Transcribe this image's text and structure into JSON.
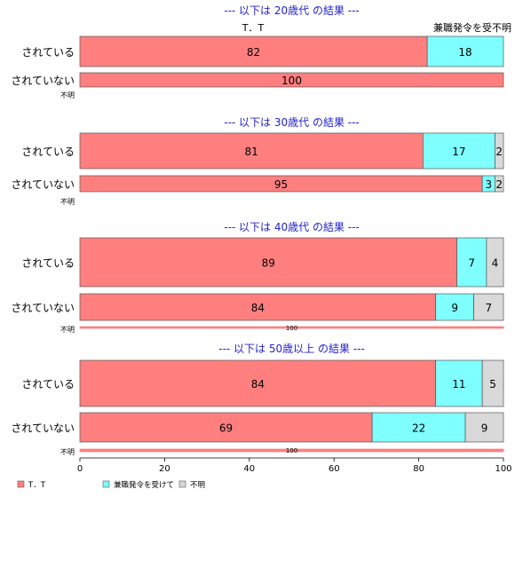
{
  "chart_data": {
    "type": "bar",
    "orientation": "horizontal",
    "stacked": true,
    "xlim": [
      0,
      100
    ],
    "x_ticks": [
      "0",
      "20",
      "40",
      "60",
      "80",
      "100"
    ],
    "colors": {
      "T_T": "#ff7f7f",
      "concurrent": "#7fffff",
      "unknown": "#d9d9d9",
      "title": "#2222cc"
    },
    "legend": {
      "position": "bottom-left",
      "items": [
        {
          "key": "T_T",
          "label": "T．T"
        },
        {
          "key": "concurrent",
          "label": "兼職発令を受けて"
        },
        {
          "key": "unknown",
          "label": "不明"
        }
      ]
    },
    "panels": [
      {
        "title": "--- 以下は 20歳代 の結果 ---",
        "column_labels": [
          "T．T",
          "兼職発令を受不明"
        ],
        "rows": [
          {
            "label": "されている",
            "values": [
              82,
              18,
              0
            ],
            "value_labels": [
              "82",
              "18",
              ""
            ]
          },
          {
            "label": "されていない",
            "values": [
              100,
              0,
              0
            ],
            "value_labels": [
              "100",
              "",
              ""
            ]
          },
          {
            "label": "不明",
            "values": [
              0,
              0,
              0
            ],
            "value_labels": [
              "",
              "",
              ""
            ]
          }
        ]
      },
      {
        "title": "--- 以下は 30歳代 の結果 ---",
        "column_labels": [],
        "rows": [
          {
            "label": "されている",
            "values": [
              81,
              17,
              2
            ],
            "value_labels": [
              "81",
              "17",
              "2"
            ]
          },
          {
            "label": "されていない",
            "values": [
              95,
              3,
              2
            ],
            "value_labels": [
              "95",
              "3",
              "2"
            ]
          },
          {
            "label": "不明",
            "values": [
              0,
              0,
              0
            ],
            "value_labels": [
              "",
              "",
              ""
            ]
          }
        ]
      },
      {
        "title": "--- 以下は 40歳代 の結果 ---",
        "column_labels": [],
        "rows": [
          {
            "label": "されている",
            "values": [
              89,
              7,
              4
            ],
            "value_labels": [
              "89",
              "7",
              "4"
            ]
          },
          {
            "label": "されていない",
            "values": [
              84,
              9,
              7
            ],
            "value_labels": [
              "84",
              "9",
              "7"
            ]
          },
          {
            "label": "不明",
            "values": [
              100,
              0,
              0
            ],
            "value_labels": [
              "100",
              "",
              ""
            ]
          }
        ]
      },
      {
        "title": "--- 以下は 50歳以上 の結果 ---",
        "column_labels": [],
        "rows": [
          {
            "label": "されている",
            "values": [
              84,
              11,
              5
            ],
            "value_labels": [
              "84",
              "11",
              "5"
            ]
          },
          {
            "label": "されていない",
            "values": [
              69,
              22,
              9
            ],
            "value_labels": [
              "69",
              "22",
              "9"
            ]
          },
          {
            "label": "不明",
            "values": [
              100,
              0,
              0
            ],
            "value_labels": [
              "100",
              "",
              ""
            ]
          }
        ]
      }
    ]
  }
}
